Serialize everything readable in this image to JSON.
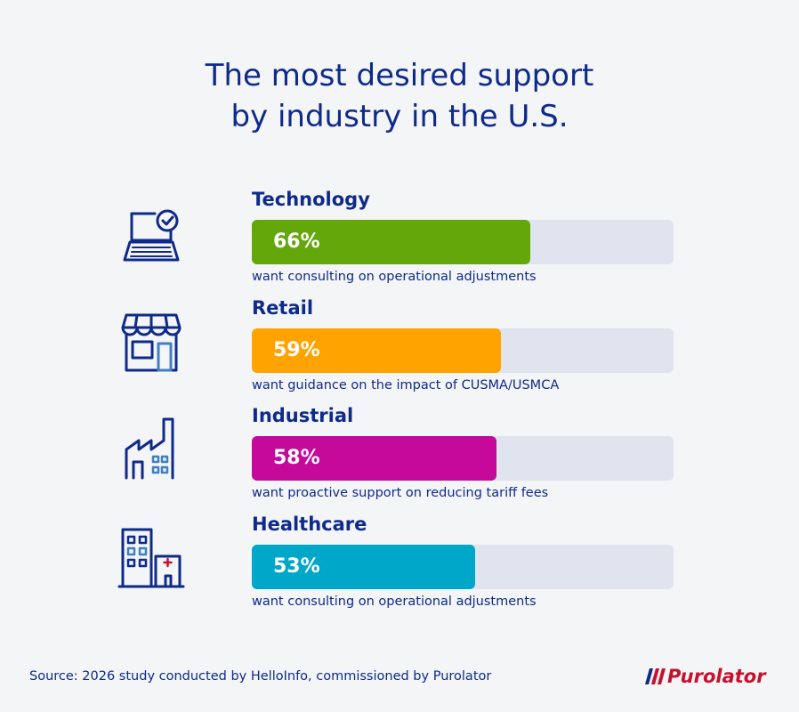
{
  "title": {
    "line1": "The most desired support",
    "line2": "by industry in the U.S."
  },
  "chart_data": {
    "type": "bar",
    "orientation": "horizontal",
    "title": "The most desired support by industry in the U.S.",
    "categories": [
      "Technology",
      "Retail",
      "Industrial",
      "Healthcare"
    ],
    "values": [
      66,
      59,
      58,
      53
    ],
    "labels": [
      "66%",
      "59%",
      "58%",
      "53%"
    ],
    "descriptions": [
      "want consulting on operational adjustments",
      "want guidance on the impact of CUSMA/USMCA",
      "want proactive support on reducing tariff fees",
      "want consulting on operational adjustments"
    ],
    "colors": [
      "#64a70b",
      "#ffa300",
      "#c5099b",
      "#00a7c9"
    ],
    "icons": [
      "laptop-check-icon",
      "storefront-icon",
      "factory-icon",
      "hospital-icon"
    ],
    "xlim": [
      0,
      100
    ],
    "track_color": "#dfe4ee"
  },
  "footer": {
    "source": "Source: 2026 study conducted by HelloInfo, commissioned by Purolator",
    "logo_text": "Purolator"
  }
}
